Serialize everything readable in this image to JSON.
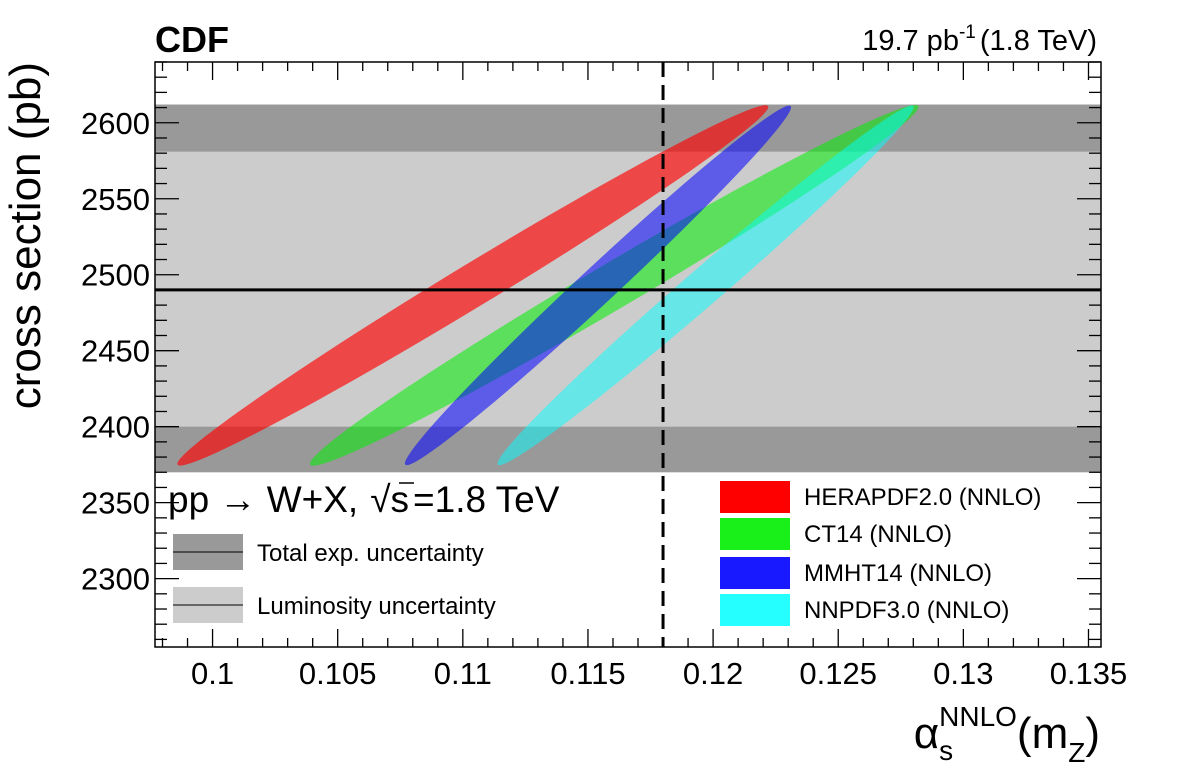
{
  "experiment_label": "CDF",
  "luminosity_label": "19.7 pb",
  "luminosity_unit_exp": "-1",
  "energy_label": "(1.8 TeV)",
  "process_label_part1": "pp → W+X,",
  "process_label_sqrt": "√",
  "process_label_s": "s",
  "process_label_energy": "=1.8 TeV",
  "chart_data": {
    "type": "scatter",
    "title": "",
    "xlabel_symbol": "α",
    "xlabel_sub": "s",
    "xlabel_sup": "NNLO",
    "xlabel_arg_open": "(m",
    "xlabel_arg_sub": "Z",
    "xlabel_arg_close": ")",
    "ylabel": "cross section (pb)",
    "xlim": [
      0.0977,
      0.1355
    ],
    "ylim": [
      2255,
      2640
    ],
    "x_ticks": [
      0.1,
      0.105,
      0.11,
      0.115,
      0.12,
      0.125,
      0.13,
      0.135
    ],
    "x_tick_labels": [
      "0.1",
      "0.105",
      "0.11",
      "0.115",
      "0.12",
      "0.125",
      "0.13",
      "0.135"
    ],
    "y_ticks": [
      2300,
      2350,
      2400,
      2450,
      2500,
      2550,
      2600
    ],
    "y_tick_labels": [
      "2300",
      "2350",
      "2400",
      "2450",
      "2500",
      "2550",
      "2600"
    ],
    "measured_cross_section": 2490,
    "reference_alpha_s": 0.118,
    "bands": [
      {
        "name": "Luminosity uncertainty",
        "y_min": 2370,
        "y_max": 2612,
        "color": "#cccccc"
      },
      {
        "name": "Total exp. uncertainty",
        "y_min": 2370,
        "y_max": 2400,
        "color": "#999999"
      },
      {
        "name": "Total exp. uncertainty",
        "y_min": 2581,
        "y_max": 2612,
        "color": "#999999"
      }
    ],
    "band_legend": [
      {
        "label": "Total exp. uncertainty",
        "color": "#999999"
      },
      {
        "label": "Luminosity uncertainty",
        "color": "#cccccc"
      }
    ],
    "series": [
      {
        "name": "HERAPDF2.0 (NNLO)",
        "color": "#ff0000",
        "opacity": 0.65,
        "ellipse_end_low": [
          0.0986,
          2375
        ],
        "ellipse_end_high": [
          0.1222,
          2611
        ],
        "half_width_pb": 14
      },
      {
        "name": "CT14 (NNLO)",
        "color": "#00ee00",
        "opacity": 0.55,
        "ellipse_end_low": [
          0.1039,
          2375
        ],
        "ellipse_end_high": [
          0.1282,
          2611
        ],
        "half_width_pb": 15
      },
      {
        "name": "MMHT14 (NNLO)",
        "color": "#0000ff",
        "opacity": 0.55,
        "ellipse_end_low": [
          0.1077,
          2375
        ],
        "ellipse_end_high": [
          0.1231,
          2611
        ],
        "half_width_pb": 12
      },
      {
        "name": "NNPDF3.0 (NNLO)",
        "color": "#00ffff",
        "opacity": 0.5,
        "ellipse_end_low": [
          0.1114,
          2375
        ],
        "ellipse_end_high": [
          0.128,
          2611
        ],
        "half_width_pb": 12
      }
    ]
  }
}
